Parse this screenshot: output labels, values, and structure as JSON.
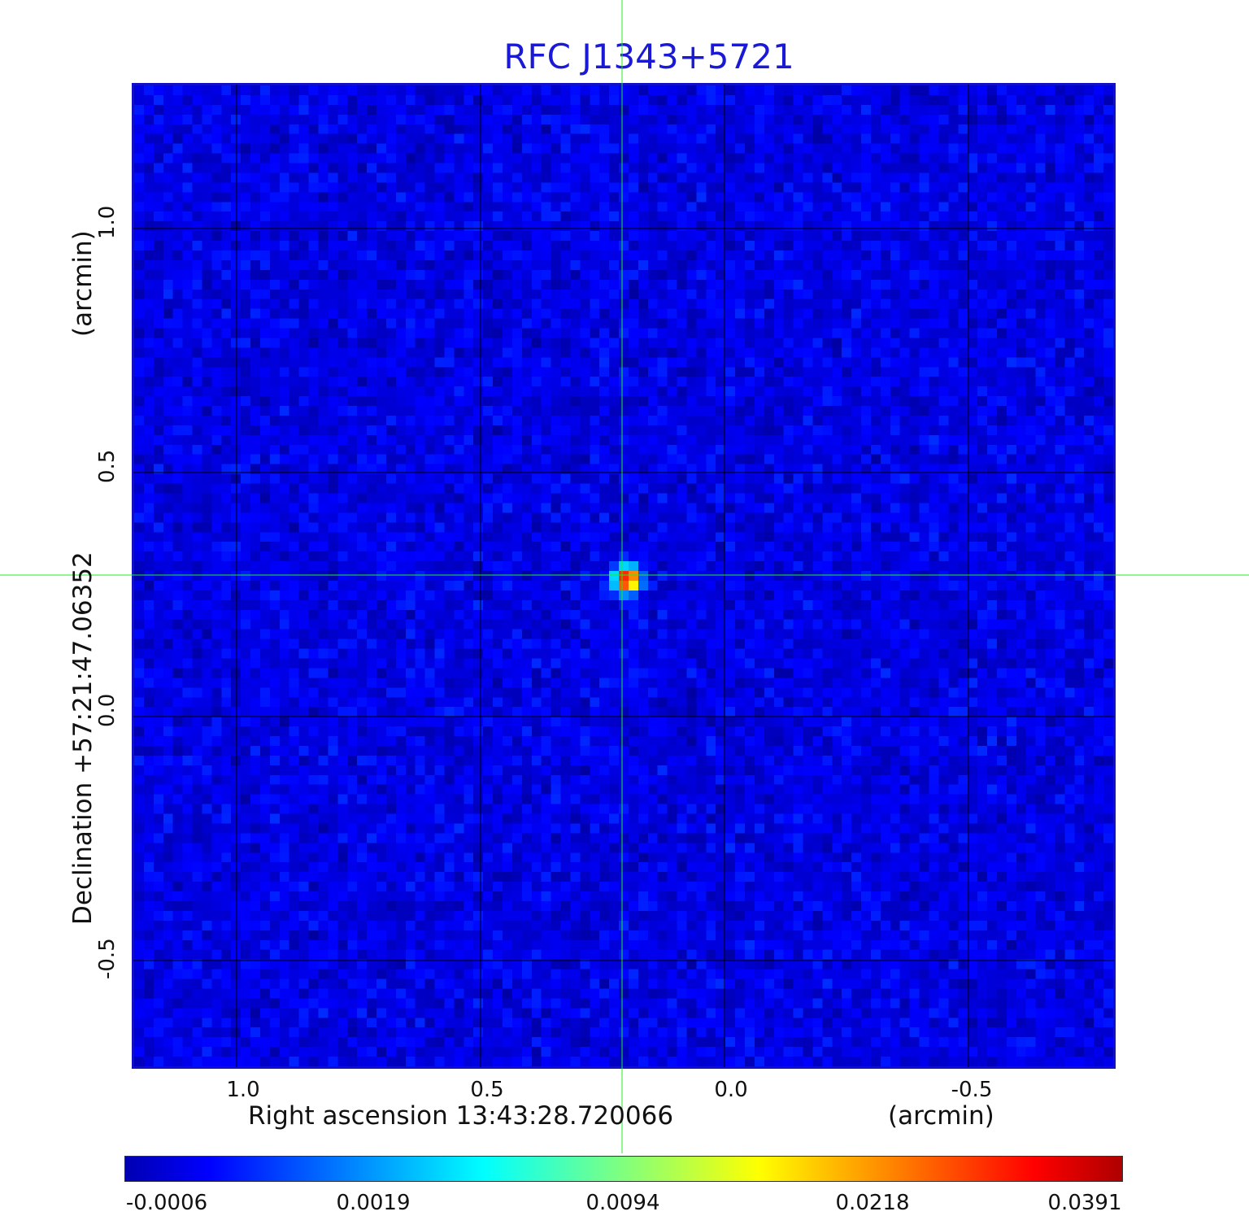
{
  "title": "RFC J1343+5721",
  "x_axis": {
    "label": "Right ascension  13:43:28.720066",
    "unit": "(arcmin)",
    "ticks": [
      {
        "value": 1.0,
        "label": "1.0"
      },
      {
        "value": 0.5,
        "label": "0.5"
      },
      {
        "value": 0.0,
        "label": "0.0"
      },
      {
        "value": -0.5,
        "label": "-0.5"
      }
    ],
    "range": [
      1.21,
      -0.8
    ]
  },
  "y_axis": {
    "label": "Declination  +57:21:47.06352",
    "unit": "(arcmin)",
    "ticks": [
      {
        "value": 1.0,
        "label": "1.0"
      },
      {
        "value": 0.5,
        "label": "0.5"
      },
      {
        "value": 0.0,
        "label": "0.0"
      },
      {
        "value": -0.5,
        "label": "-0.5"
      }
    ],
    "range": [
      -0.72,
      1.29
    ]
  },
  "source": {
    "x_arcmin": 0.21,
    "y_arcmin": 0.29
  },
  "colorbar": {
    "colormap": "jet",
    "labels": [
      "-0.0006",
      "0.0019",
      "0.0094",
      "0.0218",
      "0.0391"
    ]
  },
  "colors": {
    "title": "#1a1ad6",
    "frame": "#1010c8",
    "crosshair": "#22ee22",
    "grid": "#000000"
  }
}
